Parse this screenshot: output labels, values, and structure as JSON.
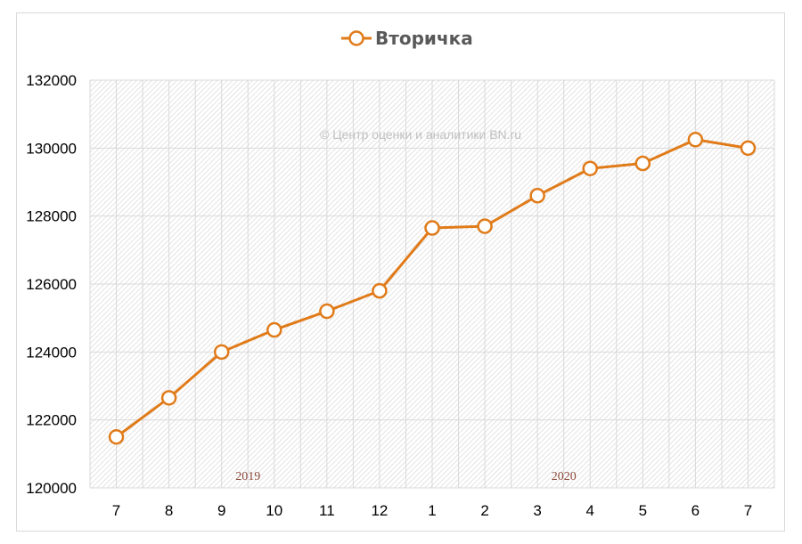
{
  "chart_data": {
    "type": "line",
    "title": "",
    "legend": {
      "position": "top",
      "entries": [
        "Вторичка"
      ]
    },
    "categories": [
      "7",
      "8",
      "9",
      "10",
      "11",
      "12",
      "1",
      "2",
      "3",
      "4",
      "5",
      "6",
      "7"
    ],
    "year_labels": [
      {
        "label": "2019",
        "between": [
          2,
          3
        ]
      },
      {
        "label": "2020",
        "between": [
          8,
          9
        ]
      }
    ],
    "series": [
      {
        "name": "Вторичка",
        "color": "#E07B1A",
        "marker": "circle-hollow",
        "values": [
          121500,
          122650,
          124000,
          124650,
          125200,
          125800,
          127650,
          127700,
          128600,
          129400,
          129550,
          130250,
          130000
        ]
      }
    ],
    "xlabel": "",
    "ylabel": "",
    "ylim": [
      120000,
      132000
    ],
    "yticks": [
      120000,
      122000,
      124000,
      126000,
      128000,
      130000,
      132000
    ],
    "grid": true,
    "annotation": "© Центр оценки и аналитики BN.ru"
  },
  "colors": {
    "line": "#E07B1A",
    "marker_fill": "#FFFFFF",
    "grid": "#D9D9D9",
    "hatch": "#D6D6D6",
    "year_text": "#8B4A3C",
    "watermark": "#C0C0C0",
    "legend_text": "#595959"
  }
}
